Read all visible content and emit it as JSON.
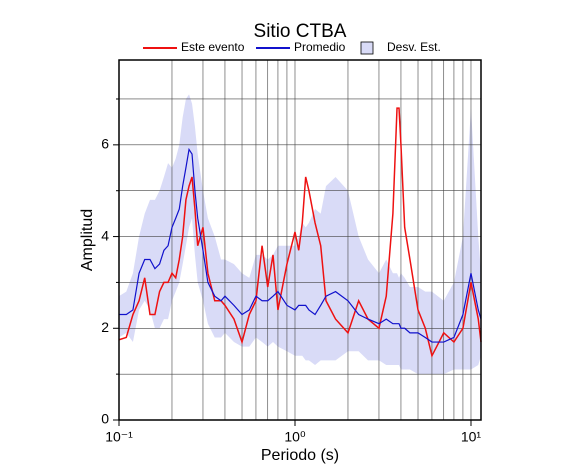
{
  "chart_data": {
    "type": "line",
    "title": "Sitio CTBA",
    "x_label": "Periodo (s)",
    "y_label": "Amplitud",
    "x_scale": "log",
    "xlim": [
      0.1,
      11.4
    ],
    "ylim": [
      0,
      7.85
    ],
    "xticks": [
      {
        "value": 0.1,
        "label": "10⁻¹"
      },
      {
        "value": 1,
        "label": "10⁰"
      },
      {
        "value": 10,
        "label": "10¹"
      }
    ],
    "x_minor_grid": [
      0.2,
      0.3,
      0.4,
      0.5,
      0.6,
      0.7,
      0.8,
      0.9,
      2,
      3,
      4,
      5,
      6,
      7,
      8,
      9
    ],
    "yticks": [
      0,
      2,
      4,
      6
    ],
    "y_minor_grid": [
      1,
      3,
      5,
      7
    ],
    "grid": true,
    "x": [
      0.1,
      0.11,
      0.12,
      0.13,
      0.14,
      0.15,
      0.16,
      0.17,
      0.18,
      0.19,
      0.2,
      0.21,
      0.22,
      0.23,
      0.24,
      0.25,
      0.26,
      0.27,
      0.28,
      0.3,
      0.32,
      0.35,
      0.38,
      0.4,
      0.45,
      0.5,
      0.55,
      0.6,
      0.65,
      0.7,
      0.75,
      0.8,
      0.9,
      1.0,
      1.05,
      1.1,
      1.15,
      1.2,
      1.3,
      1.4,
      1.5,
      1.7,
      2.0,
      2.3,
      2.6,
      3.0,
      3.3,
      3.6,
      3.8,
      3.9,
      4.0,
      4.2,
      4.5,
      5,
      5.5,
      6,
      7,
      8,
      9,
      10,
      11,
      11.4
    ],
    "series": [
      {
        "name": "Este evento",
        "color": "#ee1111",
        "values": [
          1.75,
          1.8,
          2.3,
          2.6,
          3.1,
          2.3,
          2.3,
          2.8,
          3.0,
          3.0,
          3.2,
          3.1,
          3.5,
          4.0,
          4.8,
          5.1,
          5.3,
          4.6,
          3.8,
          4.2,
          3.2,
          2.6,
          2.6,
          2.5,
          2.2,
          1.7,
          2.3,
          2.6,
          3.8,
          2.9,
          3.6,
          2.4,
          3.4,
          4.1,
          3.7,
          4.3,
          5.3,
          5.0,
          4.3,
          3.8,
          2.6,
          2.2,
          1.9,
          2.6,
          2.2,
          2.0,
          2.7,
          4.5,
          6.8,
          6.8,
          6.0,
          4.2,
          3.5,
          2.4,
          2.0,
          1.4,
          1.9,
          1.7,
          2.0,
          3.0,
          2.2,
          1.7
        ]
      },
      {
        "name": "Promedio",
        "color": "#1111cc",
        "values": [
          2.3,
          2.3,
          2.4,
          3.2,
          3.5,
          3.5,
          3.3,
          3.4,
          3.7,
          3.8,
          4.2,
          4.4,
          4.6,
          5.1,
          5.5,
          5.9,
          5.8,
          5.0,
          4.4,
          3.7,
          3.0,
          2.7,
          2.6,
          2.7,
          2.5,
          2.3,
          2.4,
          2.7,
          2.6,
          2.6,
          2.7,
          2.8,
          2.5,
          2.4,
          2.5,
          2.5,
          2.5,
          2.4,
          2.3,
          2.5,
          2.7,
          2.8,
          2.6,
          2.3,
          2.2,
          2.1,
          2.2,
          2.1,
          2.1,
          2.1,
          2.0,
          2.0,
          1.9,
          1.9,
          1.8,
          1.7,
          1.7,
          1.8,
          2.3,
          3.2,
          2.4,
          2.2
        ]
      }
    ],
    "band": {
      "name": "Desv. Est.",
      "color": "#d9dbf7",
      "upper": [
        2.7,
        2.8,
        3.2,
        4.0,
        4.5,
        4.8,
        4.8,
        5.0,
        5.3,
        5.6,
        5.5,
        5.7,
        6.0,
        6.6,
        7.0,
        7.1,
        6.9,
        6.4,
        5.8,
        5.0,
        4.4,
        4.0,
        3.5,
        3.5,
        3.4,
        3.2,
        3.1,
        3.6,
        3.6,
        3.5,
        3.6,
        3.8,
        3.8,
        3.8,
        4.0,
        4.3,
        4.2,
        4.3,
        4.6,
        4.5,
        5.1,
        5.3,
        5.0,
        4.0,
        3.5,
        3.2,
        3.5,
        3.2,
        3.2,
        3.1,
        3.2,
        3.1,
        2.9,
        2.9,
        2.8,
        2.8,
        2.6,
        3.0,
        4.0,
        6.8,
        4.0,
        3.2
      ],
      "lower": [
        1.8,
        1.9,
        1.7,
        2.4,
        2.6,
        2.4,
        2.0,
        2.0,
        2.2,
        2.2,
        2.6,
        2.8,
        3.0,
        3.4,
        3.8,
        4.2,
        4.4,
        3.6,
        3.0,
        2.6,
        2.1,
        1.8,
        1.8,
        1.9,
        1.7,
        1.6,
        1.6,
        1.8,
        1.7,
        1.6,
        1.7,
        1.6,
        1.5,
        1.4,
        1.4,
        1.4,
        1.3,
        1.3,
        1.2,
        1.3,
        1.3,
        1.3,
        1.5,
        1.5,
        1.3,
        1.3,
        1.2,
        1.2,
        1.2,
        1.2,
        1.1,
        1.1,
        1.1,
        1.0,
        1.0,
        1.0,
        1.0,
        1.1,
        1.1,
        1.1,
        1.2,
        1.4
      ]
    }
  }
}
